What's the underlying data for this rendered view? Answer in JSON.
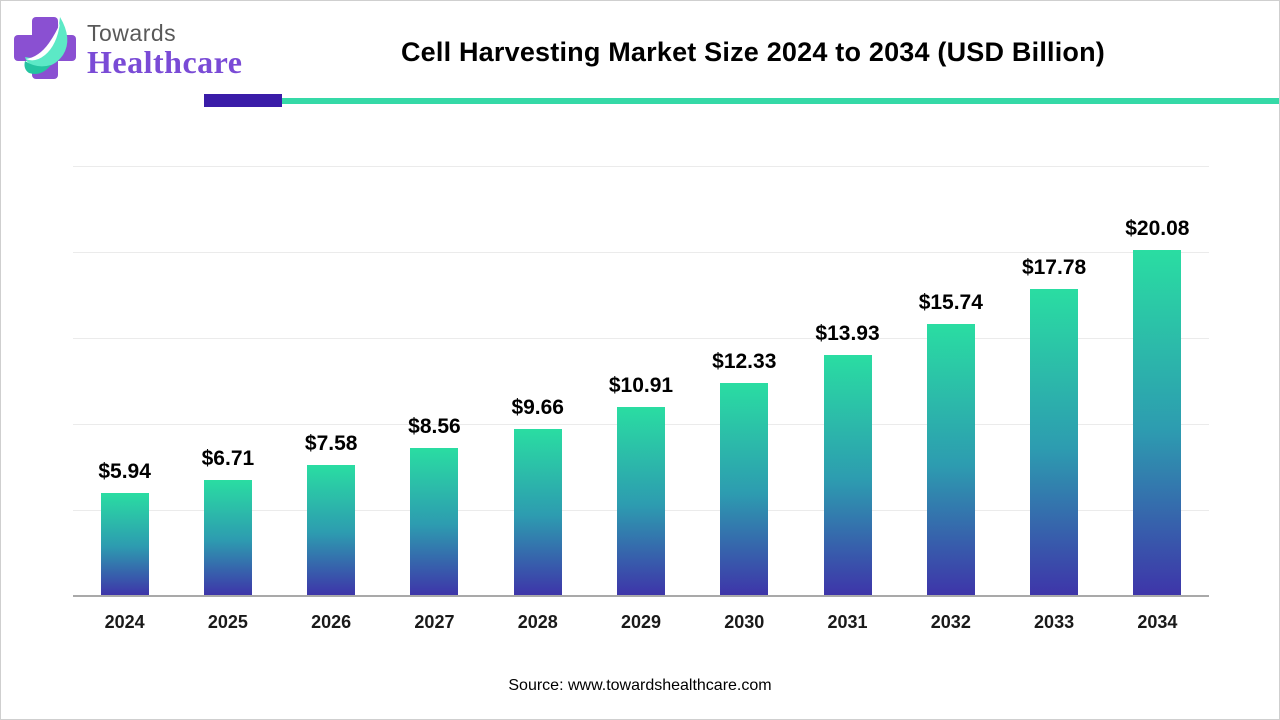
{
  "header": {
    "logo": {
      "brand_top": "Towards",
      "brand_bottom": "Healthcare",
      "cross_color": "#8a50d2",
      "leaf_color": "#5ce9c6",
      "leaf_dark_color": "#25c4a1",
      "brand_top_color": "#595959",
      "brand_bottom_color": "#7a4bd6"
    },
    "title": "Cell Harvesting Market Size 2024 to 2034 (USD Billion)",
    "underline": {
      "purple_color": "#3a1ca8",
      "teal_color": "#35d9a7"
    }
  },
  "chart_data": {
    "type": "bar",
    "title": "Cell Harvesting Market Size 2024 to 2034 (USD Billion)",
    "unit": "USD Billion",
    "categories": [
      "2024",
      "2025",
      "2026",
      "2027",
      "2028",
      "2029",
      "2030",
      "2031",
      "2032",
      "2033",
      "2034"
    ],
    "values": [
      5.94,
      6.71,
      7.58,
      8.56,
      9.66,
      10.91,
      12.33,
      13.93,
      15.74,
      17.78,
      20.08
    ],
    "value_labels": [
      "$5.94",
      "$6.71",
      "$7.58",
      "$8.56",
      "$9.66",
      "$10.91",
      "$12.33",
      "$13.93",
      "$15.74",
      "$17.78",
      "$20.08"
    ],
    "xlabel": "",
    "ylabel": "",
    "ylim": [
      0,
      25
    ],
    "gridline_values": [
      0,
      5,
      10,
      15,
      20,
      25
    ],
    "grid": "horizontal-only",
    "legend": "none",
    "y_axis_tick_labels_visible": false,
    "bar_gradient_top": "#2adda2",
    "bar_gradient_mid": "#2d9cb0",
    "bar_gradient_bottom": "#3e35a9"
  },
  "footer": {
    "source": "Source: www.towardshealthcare.com"
  }
}
